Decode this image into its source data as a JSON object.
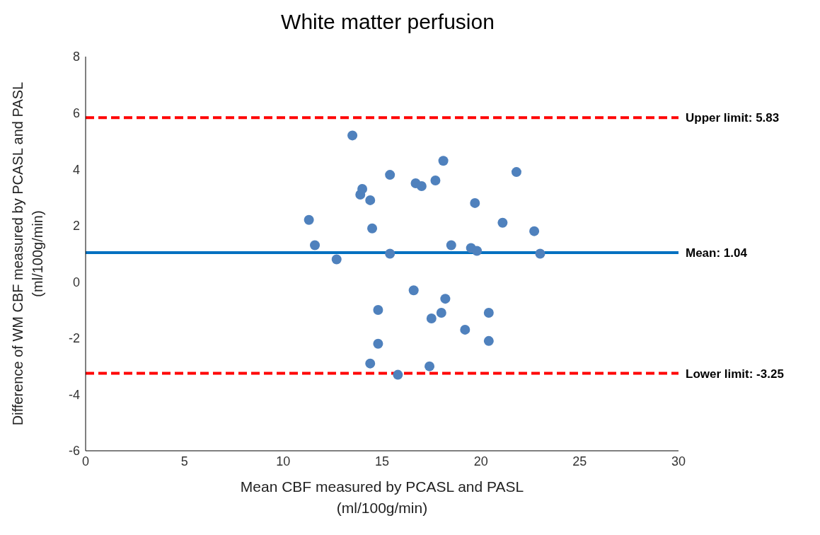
{
  "chart_data": {
    "type": "scatter",
    "title": "White matter perfusion",
    "xlabel": "Mean CBF measured by PCASL and PASL\n(ml/100g/min)",
    "ylabel": "Difference of WM CBF measured by PCASL and PASL\n(ml/100g/min)",
    "series": [
      {
        "color": "#4f81bd",
        "x": [
          11.3,
          11.6,
          12.7,
          13.5,
          13.9,
          14.0,
          14.4,
          14.5,
          15.4,
          15.4,
          16.7,
          17.0,
          17.7,
          18.1,
          18.5,
          19.7,
          19.5,
          19.8,
          21.1,
          21.8,
          22.7,
          23.0,
          14.8,
          14.8,
          14.4,
          16.6,
          15.8,
          17.5,
          18.0,
          18.2,
          17.4,
          19.2,
          20.4,
          20.4
        ],
        "values": [
          2.2,
          1.3,
          0.8,
          5.2,
          3.1,
          3.3,
          2.9,
          1.9,
          3.8,
          1.0,
          3.5,
          3.4,
          3.6,
          4.3,
          1.3,
          2.8,
          1.2,
          1.1,
          2.1,
          3.9,
          1.8,
          1.0,
          -1.0,
          -2.2,
          -2.9,
          -0.3,
          -3.3,
          -1.3,
          -1.1,
          -0.6,
          -3.0,
          -1.7,
          -1.1,
          -2.1
        ]
      }
    ],
    "marker": "circle",
    "xlim": [
      0,
      30
    ],
    "xticks": [
      0,
      5,
      10,
      15,
      20,
      25,
      30
    ],
    "ylim": [
      -6,
      8
    ],
    "yticks": [
      -6,
      -4,
      -2,
      0,
      2,
      4,
      6,
      8
    ],
    "grid": false,
    "legend": false,
    "ref_lines": [
      {
        "axis": "y",
        "value": 5.83,
        "label": "Upper limit: 5.83",
        "color": "#ff0000",
        "line_style": "dashed"
      },
      {
        "axis": "y",
        "value": 1.04,
        "label": "Mean: 1.04",
        "color": "#0070c0",
        "line_style": "solid"
      },
      {
        "axis": "y",
        "value": -3.25,
        "label": "Lower limit: -3.25",
        "color": "#ff0000",
        "line_style": "dashed"
      }
    ]
  }
}
